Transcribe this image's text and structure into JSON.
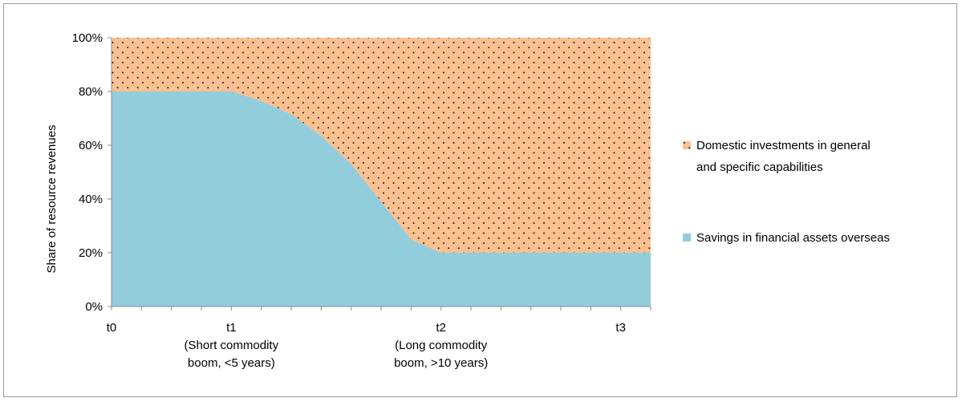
{
  "chart_data": {
    "type": "area",
    "stacked": true,
    "percent_stacked": true,
    "ylabel": "Share of resource revenues",
    "xlabel": "",
    "ylim": [
      0,
      100
    ],
    "y_ticks": [
      "0%",
      "20%",
      "40%",
      "60%",
      "80%",
      "100%"
    ],
    "x_labels": [
      {
        "x": 0,
        "lines": [
          "t0"
        ]
      },
      {
        "x": 4,
        "lines": [
          "t1",
          "(Short commodity",
          "boom, <5 years)"
        ]
      },
      {
        "x": 11,
        "lines": [
          "t2",
          "(Long commodity",
          "boom, >10 years)"
        ]
      },
      {
        "x": 17,
        "lines": [
          "t3"
        ]
      }
    ],
    "x_range": [
      0,
      18
    ],
    "x_ticks_count": 18,
    "x": [
      0,
      1,
      2,
      3,
      4,
      5,
      6,
      7,
      8,
      9,
      10,
      11,
      12,
      13,
      14,
      15,
      16,
      17,
      18
    ],
    "series": [
      {
        "name": "Savings in financial assets overseas",
        "color": "#92cddc",
        "values": [
          80,
          80,
          80,
          80,
          80,
          76.5,
          71.5,
          63.5,
          53,
          39,
          25,
          20,
          20,
          20,
          20,
          20,
          20,
          20,
          20
        ]
      },
      {
        "name": "Domestic investments in general and specific capabilities",
        "color": "#fac090",
        "pattern": "dots",
        "values": [
          20,
          20,
          20,
          20,
          20,
          23.5,
          28.5,
          36.5,
          47,
          61,
          75,
          80,
          80,
          80,
          80,
          80,
          80,
          80,
          80
        ]
      }
    ],
    "legend": {
      "placement": "right",
      "entries": [
        {
          "lines": [
            "Domestic investments in general",
            "and specific capabilities"
          ],
          "color": "#fac090",
          "pattern": "dots"
        },
        {
          "lines": [
            "Savings in financial assets overseas"
          ],
          "color": "#92cddc"
        }
      ]
    },
    "grid": false
  }
}
